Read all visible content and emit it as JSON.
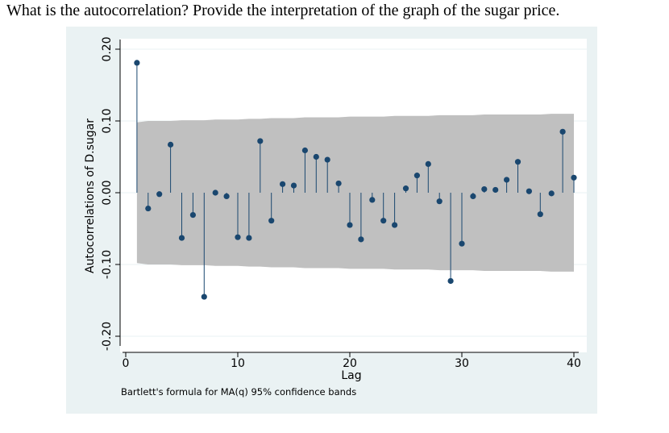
{
  "question": "What is the autocorrelation?  Provide the interpretation of the graph of the sugar price.",
  "colors": {
    "panel_background": "#eaf2f3",
    "plot_background": "#ffffff",
    "confidence_band": "#c0c0c0",
    "marker": "#1a476f",
    "spike": "#1a476f",
    "axis": "#000000",
    "gridline": "#eaf2f3"
  },
  "chart_data": {
    "type": "scatter",
    "style": "spikes-with-markers",
    "ylabel": "Autocorrelations of D.sugar",
    "xlabel": "Lag",
    "note": "Bartlett's formula for MA(q) 95% confidence bands",
    "xlim": [
      0,
      40
    ],
    "ylim": [
      -0.2,
      0.2
    ],
    "xticks": [
      0,
      10,
      20,
      30,
      40
    ],
    "xtick_labels": [
      "0",
      "10",
      "20",
      "30",
      "40"
    ],
    "yticks": [
      -0.2,
      -0.1,
      0,
      0.1,
      0.2
    ],
    "ytick_labels": [
      "-0.20",
      "-0.10",
      "0.00",
      "0.10",
      "0.20"
    ],
    "grid": true,
    "lags": [
      1,
      2,
      3,
      4,
      5,
      6,
      7,
      8,
      9,
      10,
      11,
      12,
      13,
      14,
      15,
      16,
      17,
      18,
      19,
      20,
      21,
      22,
      23,
      24,
      25,
      26,
      27,
      28,
      29,
      30,
      31,
      32,
      33,
      34,
      35,
      36,
      37,
      38,
      39,
      40
    ],
    "autocorrelations": [
      0.181,
      -0.022,
      -0.002,
      0.067,
      -0.063,
      -0.031,
      -0.145,
      0.0,
      -0.005,
      -0.062,
      -0.063,
      0.072,
      -0.039,
      0.012,
      0.01,
      0.059,
      0.05,
      0.046,
      0.013,
      -0.045,
      -0.065,
      -0.01,
      -0.039,
      -0.045,
      0.006,
      0.024,
      0.04,
      -0.012,
      -0.123,
      -0.071,
      -0.005,
      0.005,
      0.004,
      0.018,
      0.043,
      0.002,
      -0.03,
      -0.001,
      0.085,
      0.021
    ],
    "confidence_band_upper": [
      0.098,
      0.1,
      0.1,
      0.1,
      0.101,
      0.101,
      0.101,
      0.102,
      0.102,
      0.102,
      0.103,
      0.103,
      0.104,
      0.104,
      0.104,
      0.105,
      0.105,
      0.105,
      0.105,
      0.106,
      0.106,
      0.106,
      0.106,
      0.107,
      0.107,
      0.107,
      0.107,
      0.108,
      0.108,
      0.108,
      0.108,
      0.109,
      0.109,
      0.109,
      0.109,
      0.109,
      0.109,
      0.11,
      0.11,
      0.11
    ],
    "confidence_band_lower": [
      -0.098,
      -0.1,
      -0.1,
      -0.1,
      -0.101,
      -0.101,
      -0.101,
      -0.102,
      -0.102,
      -0.102,
      -0.103,
      -0.103,
      -0.104,
      -0.104,
      -0.104,
      -0.105,
      -0.105,
      -0.105,
      -0.105,
      -0.106,
      -0.106,
      -0.106,
      -0.106,
      -0.107,
      -0.107,
      -0.107,
      -0.107,
      -0.108,
      -0.108,
      -0.108,
      -0.108,
      -0.109,
      -0.109,
      -0.109,
      -0.109,
      -0.109,
      -0.109,
      -0.11,
      -0.11,
      -0.11
    ]
  }
}
